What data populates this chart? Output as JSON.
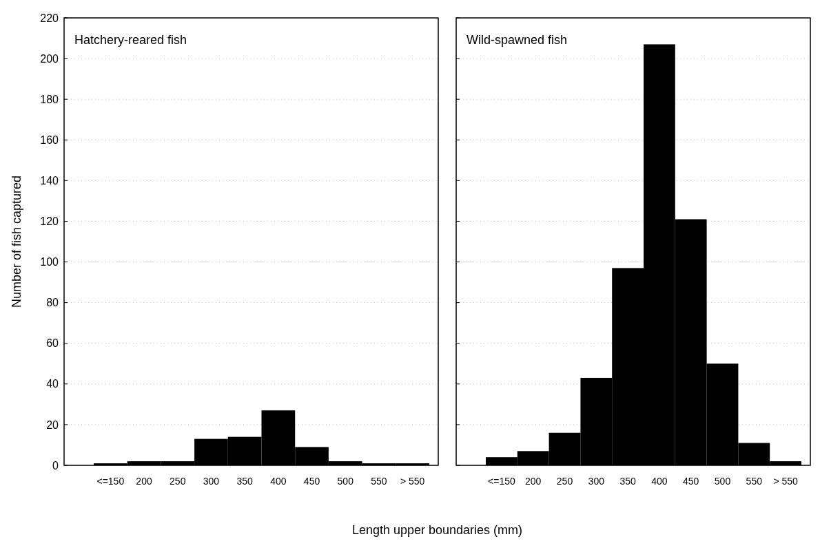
{
  "chart_data": [
    {
      "type": "bar",
      "title": "Hatchery-reared fish",
      "xlabel": "Length upper boundaries (mm)",
      "ylabel": "Number of fish captured",
      "categories": [
        "<=150",
        "200",
        "250",
        "300",
        "350",
        "400",
        "450",
        "500",
        "550",
        "> 550"
      ],
      "values": [
        1,
        2,
        2,
        13,
        14,
        27,
        9,
        2,
        1,
        1
      ],
      "color": "#000000",
      "ylim": [
        0,
        220
      ],
      "yticks": [
        0,
        20,
        40,
        60,
        80,
        100,
        120,
        140,
        160,
        180,
        200,
        220
      ],
      "grid": "y"
    },
    {
      "type": "bar",
      "title": "Wild-spawned fish",
      "categories": [
        "<=150",
        "200",
        "250",
        "300",
        "350",
        "400",
        "450",
        "500",
        "550",
        "> 550"
      ],
      "values": [
        4,
        7,
        16,
        43,
        97,
        207,
        121,
        50,
        11,
        2
      ],
      "color": "#000000",
      "ylim": [
        0,
        220
      ],
      "yticks": [
        0,
        20,
        40,
        60,
        80,
        100,
        120,
        140,
        160,
        180,
        200,
        220
      ],
      "grid": "y",
      "tick_labels": "x"
    }
  ]
}
